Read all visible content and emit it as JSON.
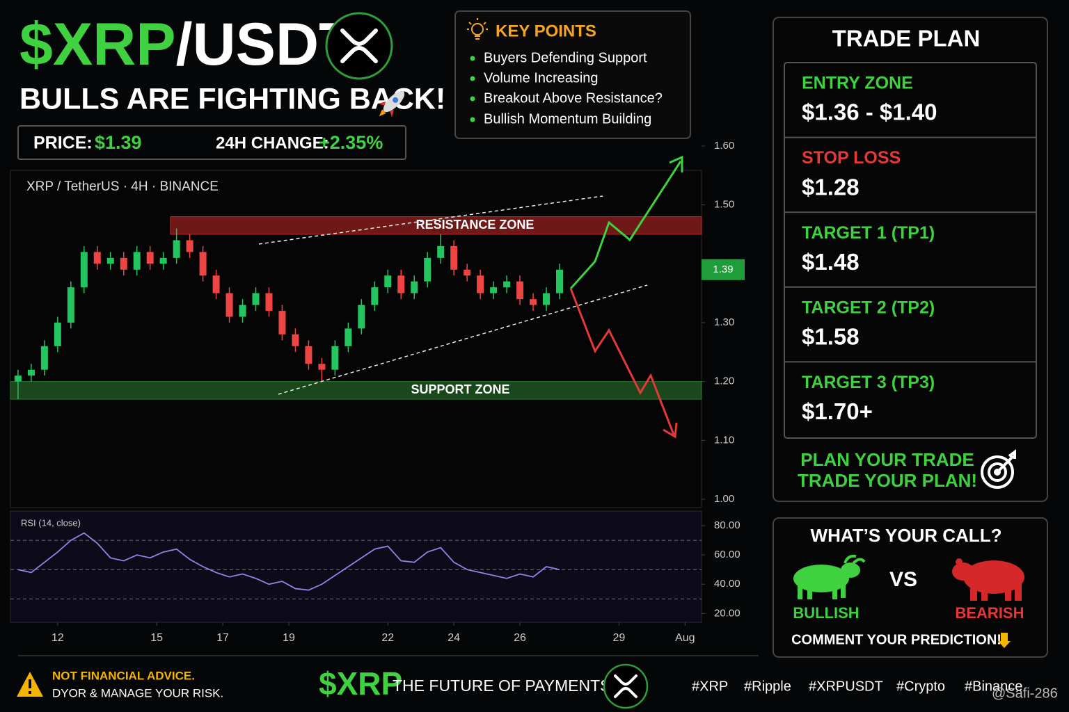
{
  "header": {
    "symbol": "$XRP",
    "pair": "/USDT",
    "headline": "BULLS ARE FIGHTING BACK!",
    "price_label": "PRICE:",
    "price": "$1.39",
    "change_label": "24H CHANGE:",
    "change": "+2.35%"
  },
  "key_points": {
    "title": "KEY POINTS",
    "items": [
      "Buyers Defending Support",
      "Volume Increasing",
      "Breakout Above Resistance?",
      "Bullish Momentum Building"
    ]
  },
  "chart_data": {
    "type": "candlestick",
    "subtitle": "XRP / TetherUS · 4H · BINANCE",
    "up_color": "#22c55e",
    "down_color": "#ef4444",
    "x": [
      10.8,
      11.2,
      11.6,
      12.0,
      12.4,
      12.8,
      13.2,
      13.6,
      14.0,
      14.4,
      14.8,
      15.2,
      15.6,
      16.0,
      16.4,
      16.8,
      17.2,
      17.6,
      18.0,
      18.4,
      18.8,
      19.2,
      19.6,
      20.0,
      20.4,
      20.8,
      21.2,
      21.6,
      22.0,
      22.4,
      22.8,
      23.2,
      23.6,
      24.0,
      24.4,
      24.8,
      25.2,
      25.6,
      26.0,
      26.4,
      26.8,
      27.2
    ],
    "open": [
      1.2,
      1.21,
      1.22,
      1.26,
      1.3,
      1.36,
      1.42,
      1.4,
      1.41,
      1.39,
      1.42,
      1.4,
      1.41,
      1.44,
      1.42,
      1.38,
      1.35,
      1.31,
      1.33,
      1.35,
      1.32,
      1.28,
      1.26,
      1.23,
      1.22,
      1.26,
      1.29,
      1.33,
      1.36,
      1.38,
      1.35,
      1.37,
      1.41,
      1.43,
      1.39,
      1.38,
      1.35,
      1.36,
      1.37,
      1.34,
      1.33,
      1.35
    ],
    "high": [
      1.22,
      1.23,
      1.27,
      1.31,
      1.37,
      1.43,
      1.43,
      1.42,
      1.42,
      1.43,
      1.43,
      1.42,
      1.46,
      1.45,
      1.43,
      1.39,
      1.36,
      1.34,
      1.36,
      1.36,
      1.33,
      1.29,
      1.27,
      1.24,
      1.27,
      1.3,
      1.34,
      1.37,
      1.39,
      1.39,
      1.38,
      1.42,
      1.45,
      1.44,
      1.4,
      1.39,
      1.37,
      1.38,
      1.38,
      1.35,
      1.36,
      1.4
    ],
    "low": [
      1.17,
      1.2,
      1.21,
      1.25,
      1.29,
      1.35,
      1.39,
      1.39,
      1.38,
      1.38,
      1.39,
      1.39,
      1.4,
      1.41,
      1.37,
      1.34,
      1.3,
      1.3,
      1.32,
      1.31,
      1.27,
      1.25,
      1.22,
      1.2,
      1.21,
      1.25,
      1.28,
      1.32,
      1.35,
      1.34,
      1.34,
      1.36,
      1.4,
      1.38,
      1.37,
      1.34,
      1.34,
      1.35,
      1.33,
      1.32,
      1.32,
      1.34
    ],
    "close": [
      1.21,
      1.22,
      1.26,
      1.3,
      1.36,
      1.42,
      1.4,
      1.41,
      1.39,
      1.42,
      1.4,
      1.41,
      1.44,
      1.42,
      1.38,
      1.35,
      1.31,
      1.33,
      1.35,
      1.32,
      1.28,
      1.26,
      1.23,
      1.22,
      1.26,
      1.29,
      1.33,
      1.36,
      1.38,
      1.35,
      1.37,
      1.41,
      1.43,
      1.39,
      1.38,
      1.35,
      1.36,
      1.37,
      1.34,
      1.33,
      1.35,
      1.39
    ],
    "xlim": [
      10.57,
      31.5
    ],
    "xticks": [
      12,
      15,
      17,
      19,
      22,
      24,
      26,
      29,
      {
        "value": 31,
        "label": "Aug"
      }
    ],
    "ylim": [
      1.0,
      1.6
    ],
    "yticks": [
      {
        "value": 1.6,
        "label": "1.60"
      },
      {
        "value": 1.5,
        "label": "1.50"
      },
      {
        "value": 1.4,
        "label": "1.40"
      },
      {
        "value": 1.3,
        "label": "1.30"
      },
      {
        "value": 1.2,
        "label": "1.20"
      },
      {
        "value": 1.1,
        "label": "1.10"
      },
      {
        "value": 1.0,
        "label": "1.00"
      }
    ],
    "zones": [
      {
        "label": "RESISTANCE ZONE",
        "low": 1.45,
        "high": 1.48,
        "color": "#c62828"
      },
      {
        "label": "SUPPORT ZONE",
        "low": 1.17,
        "high": 1.2,
        "color": "#2e7d32"
      }
    ],
    "rsi": {
      "label": "RSI (14, close)",
      "color": "#9b7fe6",
      "values": [
        50,
        48,
        55,
        62,
        70,
        75,
        68,
        58,
        56,
        60,
        58,
        62,
        64,
        57,
        52,
        48,
        45,
        47,
        44,
        40,
        42,
        37,
        36,
        40,
        46,
        52,
        58,
        64,
        66,
        56,
        55,
        62,
        65,
        55,
        50,
        48,
        46,
        44,
        47,
        45,
        52,
        50
      ],
      "ylim": [
        14,
        90
      ],
      "yticks": [
        {
          "value": 80,
          "label": "80.00"
        },
        {
          "value": 60,
          "label": "60.00"
        },
        {
          "value": 40,
          "label": "40.00"
        },
        {
          "value": 20,
          "label": "20.00"
        }
      ],
      "levels": [
        70,
        50,
        30
      ]
    }
  },
  "trade_plan": {
    "title": "TRADE PLAN",
    "rows": [
      {
        "label": "ENTRY ZONE",
        "value": "$1.36 - $1.40"
      },
      {
        "label": "STOP LOSS",
        "value": "$1.28"
      },
      {
        "label": "TARGET 1  (TP1)",
        "value": "$1.48"
      },
      {
        "label": "TARGET 2  (TP2)",
        "value": "$1.58"
      },
      {
        "label": "TARGET 3  (TP3)",
        "value": "$1.70+"
      }
    ],
    "slogan": [
      "PLAN YOUR TRADE",
      "TRADE YOUR PLAN!"
    ]
  },
  "poll": {
    "title": "WHAT’S YOUR CALL?",
    "vs": "VS",
    "bullish": "BULLISH",
    "bearish": "BEARISH",
    "cta": "COMMENT YOUR PREDICTION!"
  },
  "footer": {
    "warning": "NOT FINANCIAL ADVICE.",
    "dyor": "DYOR & MANAGE YOUR RISK.",
    "symbol": "$XRP",
    "tagline": "THE FUTURE OF PAYMENTS",
    "hashtags": [
      "#XRP",
      "#Ripple",
      "#XRPUSDT",
      "#Crypto",
      "#Binance"
    ],
    "watermark": "@Safi-286"
  }
}
